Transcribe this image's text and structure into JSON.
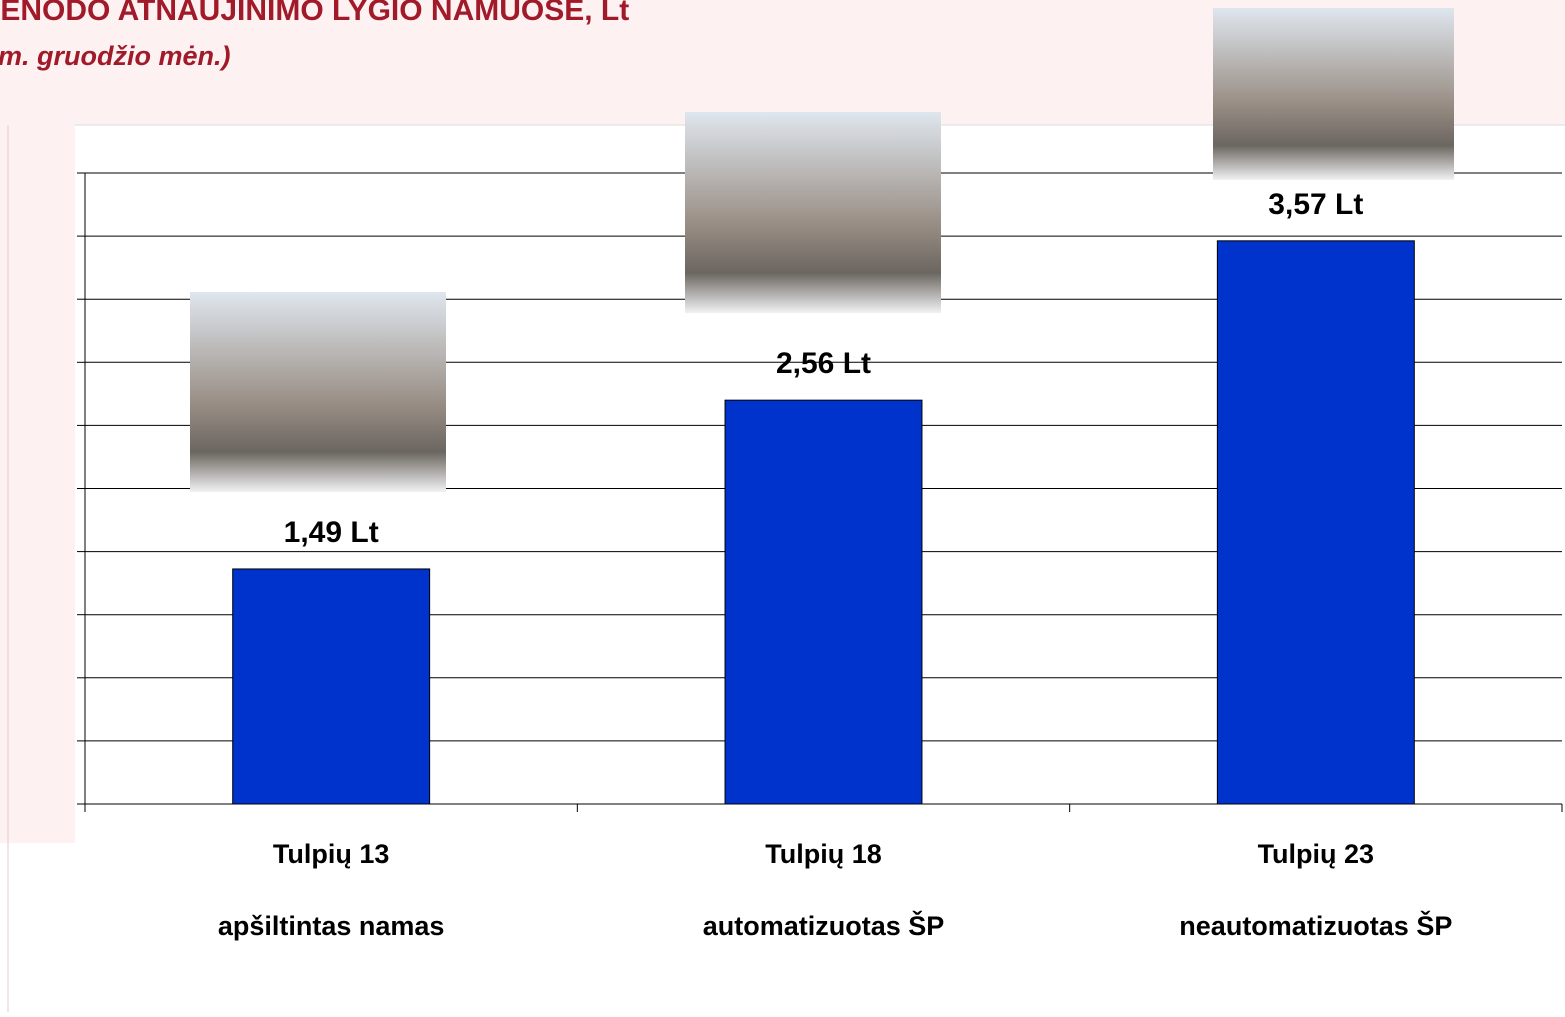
{
  "chart_data": {
    "type": "bar",
    "title": "IENODO ATNAUJINIMO LYGIO NAMUOSE, Lt",
    "subtitle": "m. gruodžio mėn.)",
    "categories": [
      "Tulpių 13",
      "Tulpių 18",
      "Tulpių 23"
    ],
    "descriptions": [
      "apšiltintas namas",
      "automatizuotas ŠP",
      "neautomatizuotas ŠP"
    ],
    "values": [
      1.49,
      2.56,
      3.57
    ],
    "value_labels": [
      "1,49 Lt",
      "2,56 Lt",
      "3,57 Lt"
    ],
    "color": "#0033cc",
    "ylim": [
      0,
      4
    ],
    "yticks": [
      0,
      0.4,
      0.8,
      1.2,
      1.6,
      2,
      2.4,
      2.8,
      3.2,
      3.6,
      4
    ],
    "grid": true
  }
}
